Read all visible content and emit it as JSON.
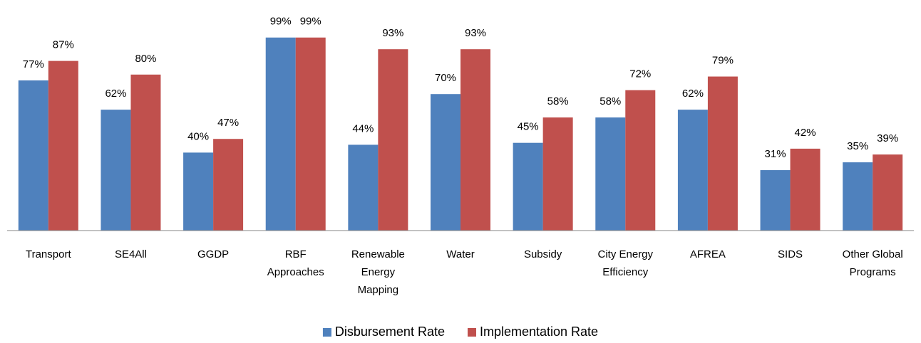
{
  "chart_data": {
    "type": "bar",
    "categories": [
      "Transport",
      "SE4All",
      "GGDP",
      "RBF Approaches",
      "Renewable Energy Mapping",
      "Water",
      "Subsidy",
      "City Energy Efficiency",
      "AFREA",
      "SIDS",
      "Other Global Programs"
    ],
    "series": [
      {
        "name": "Disbursement Rate",
        "color": "#4f81bd",
        "values": [
          77,
          62,
          40,
          99,
          44,
          70,
          45,
          58,
          62,
          31,
          35
        ],
        "value_labels": [
          "77%",
          "62%",
          "40%",
          "99%",
          "44%",
          "70%",
          "45%",
          "58%",
          "62%",
          "31%",
          "35%"
        ]
      },
      {
        "name": "Implementation Rate",
        "color": "#c0504d",
        "values": [
          87,
          80,
          47,
          99,
          93,
          93,
          58,
          72,
          79,
          42,
          39
        ],
        "value_labels": [
          "87%",
          "80%",
          "47%",
          "99%",
          "93%",
          "93%",
          "58%",
          "72%",
          "79%",
          "42%",
          "39%"
        ]
      }
    ],
    "ylim": [
      0,
      100
    ],
    "legend": "bottom"
  }
}
